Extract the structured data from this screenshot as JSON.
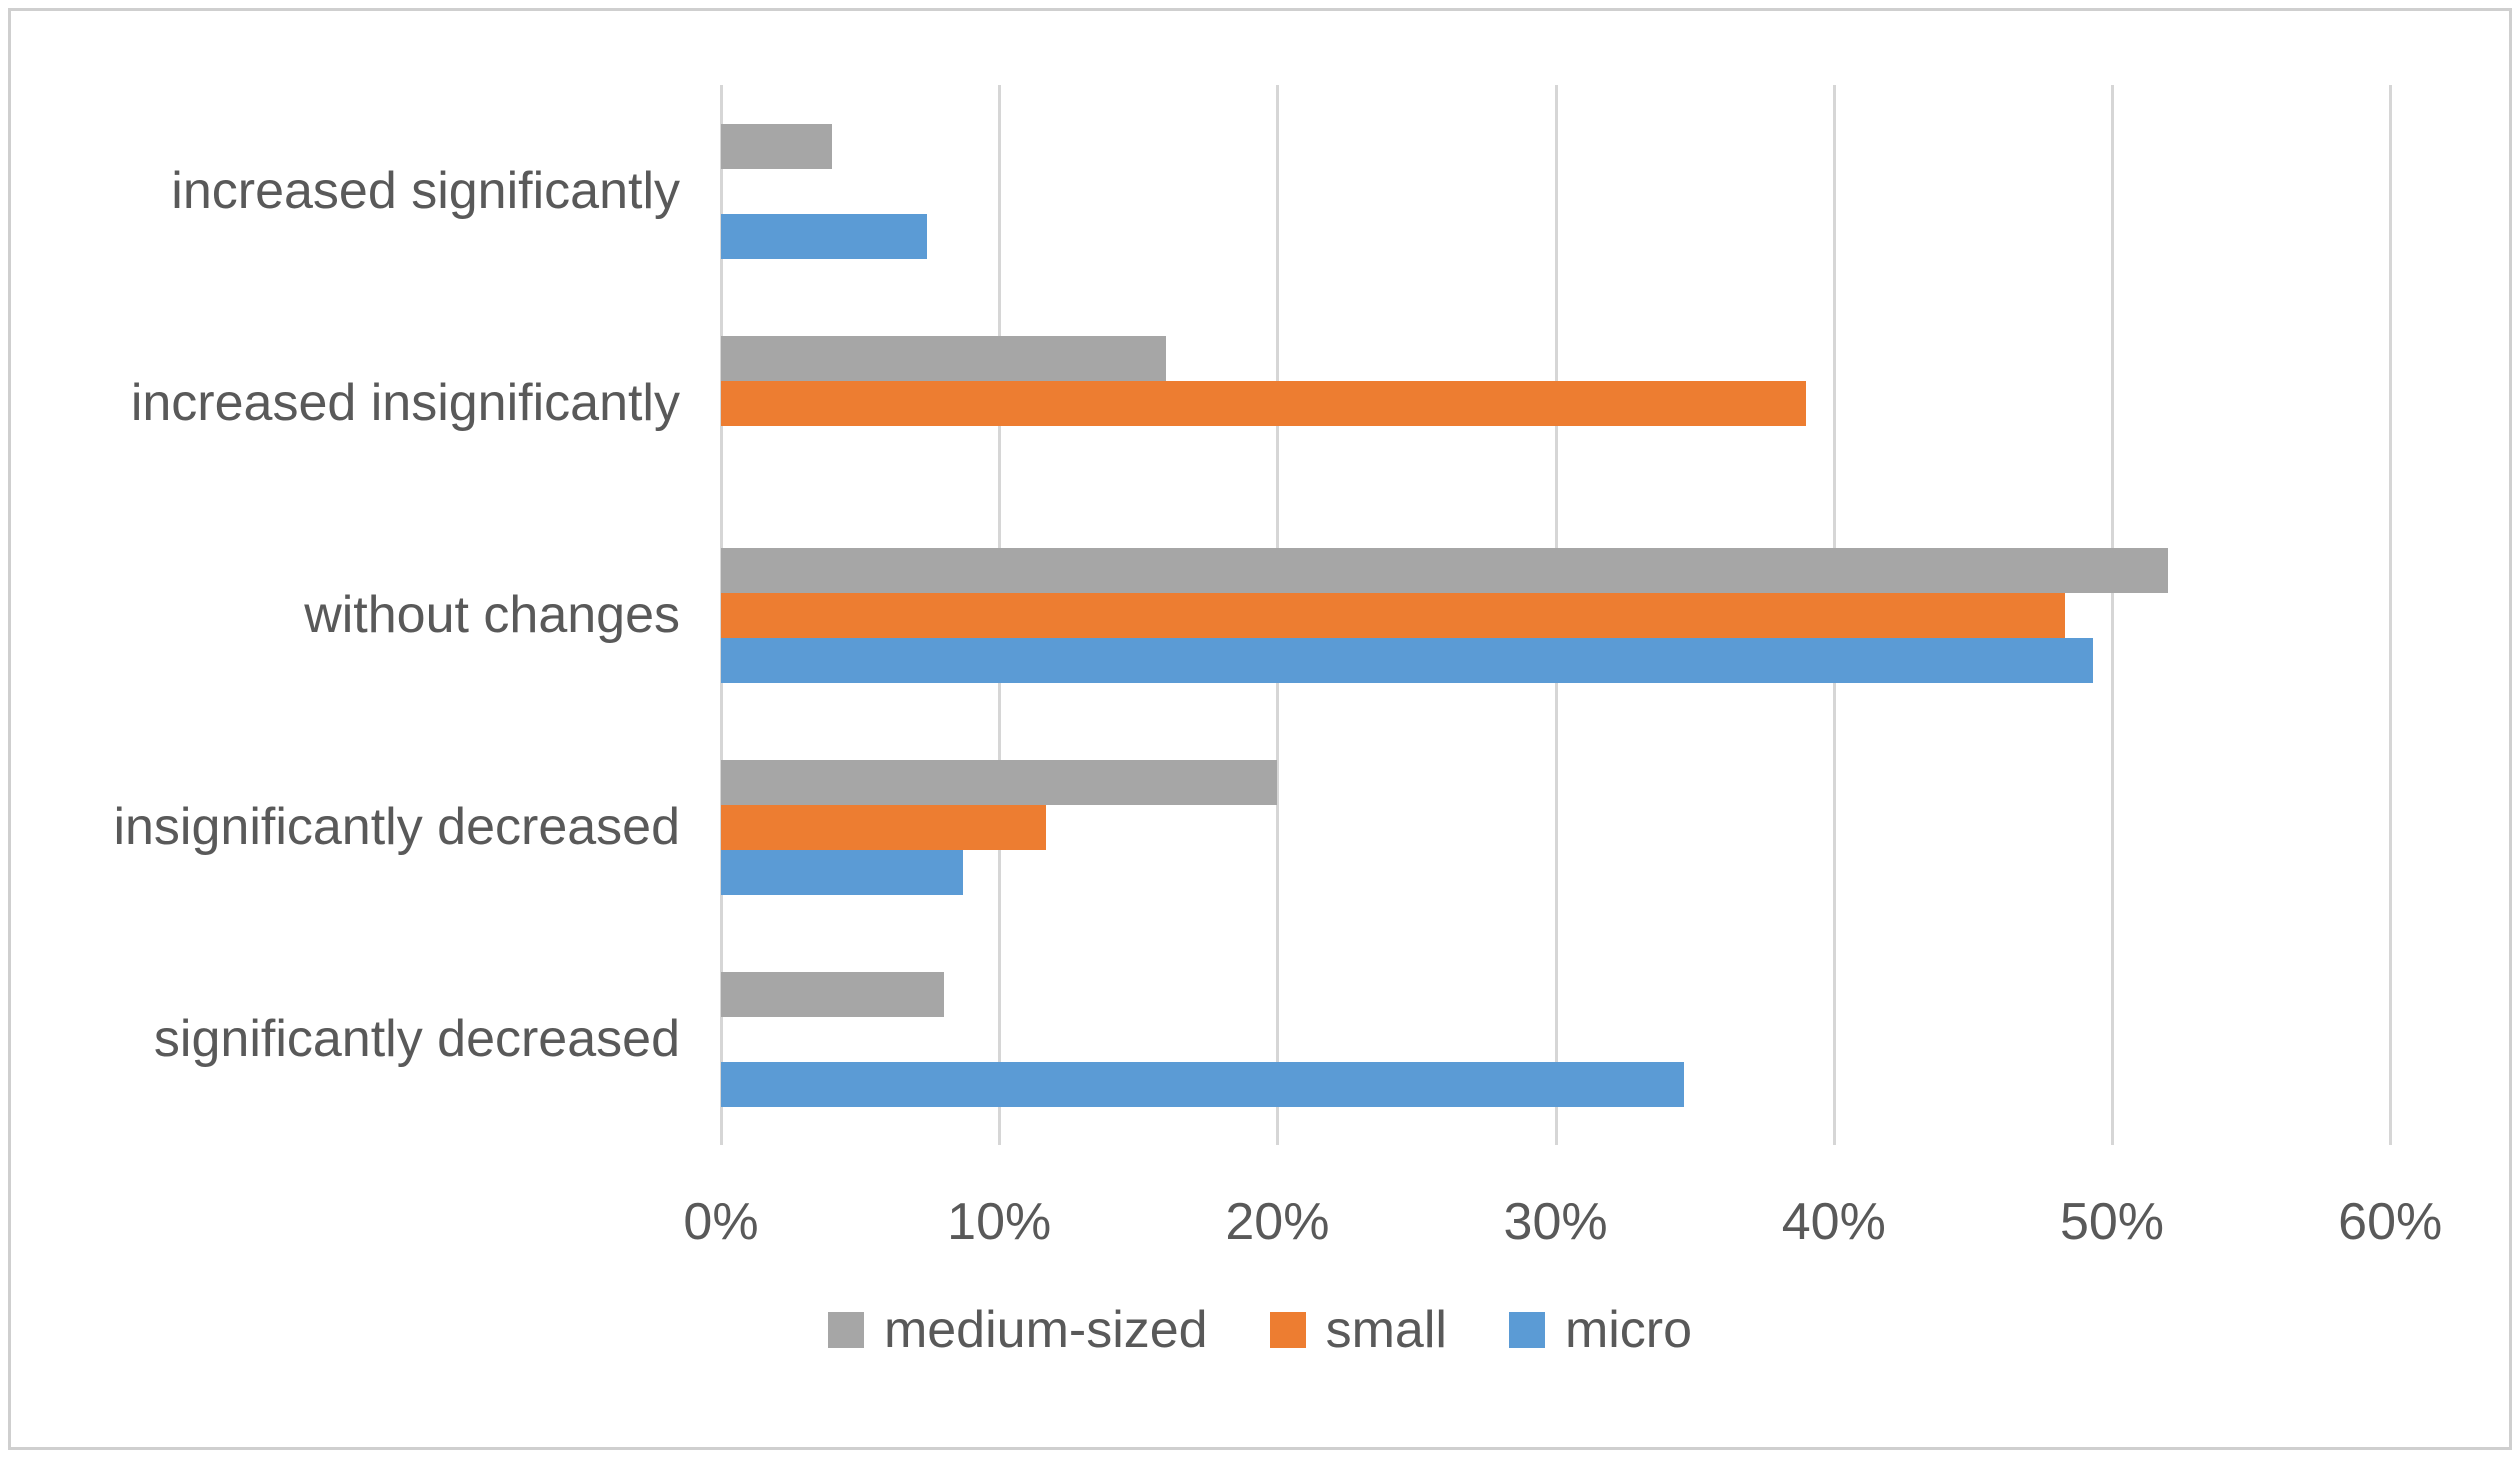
{
  "figure": {
    "background_color": "#ffffff",
    "border_color": "#cfcfcf",
    "text_color": "#595959",
    "gridline_color": "#d6d6d6"
  },
  "chart_data": {
    "type": "bar",
    "orientation": "horizontal",
    "title": "",
    "xlabel": "",
    "ylabel": "",
    "grid": true,
    "categories": [
      "increased significantly",
      "increased insignificantly",
      "without changes",
      "insignificantly decreased",
      "significantly decreased"
    ],
    "series": [
      {
        "name": "medium-sized",
        "color": "#A6A6A6",
        "values": [
          4,
          16,
          52,
          20,
          8
        ]
      },
      {
        "name": "small",
        "color": "#ED7D31",
        "values": [
          0,
          39,
          48.3,
          11.7,
          0
        ]
      },
      {
        "name": "micro",
        "color": "#5B9BD5",
        "values": [
          7.4,
          0,
          49.3,
          8.7,
          34.6
        ]
      }
    ],
    "x_axis": {
      "min": 0,
      "max": 60,
      "step": 10,
      "unit": "%",
      "tick_labels": [
        "0%",
        "10%",
        "20%",
        "30%",
        "40%",
        "50%",
        "60%"
      ]
    },
    "legend": {
      "position": "bottom",
      "entries": [
        "medium-sized",
        "small",
        "micro"
      ]
    }
  }
}
